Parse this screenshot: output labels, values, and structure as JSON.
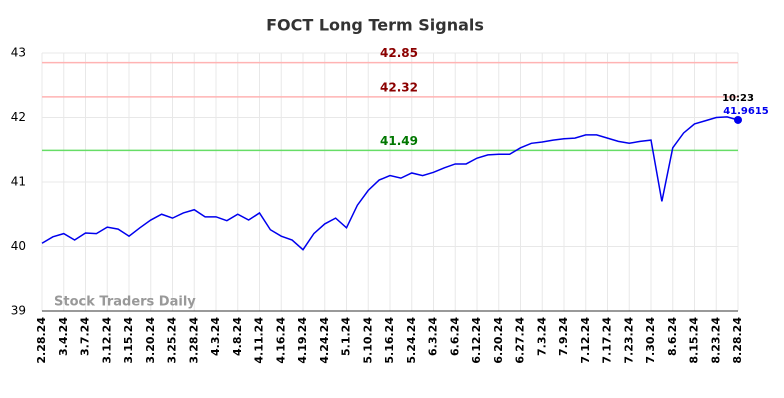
{
  "chart_data": {
    "type": "line",
    "title": "FOCT Long Term Signals",
    "categories": [
      "2.28.24",
      null,
      "3.4.24",
      null,
      "3.7.24",
      null,
      "3.12.24",
      null,
      "3.15.24",
      null,
      "3.20.24",
      null,
      "3.25.24",
      null,
      "3.28.24",
      null,
      "4.3.24",
      null,
      "4.8.24",
      null,
      "4.11.24",
      null,
      "4.16.24",
      null,
      "4.19.24",
      null,
      "4.24.24",
      null,
      "5.1.24",
      null,
      "5.10.24",
      null,
      "5.16.24",
      null,
      "5.24.24",
      null,
      "6.3.24",
      null,
      "6.6.24",
      null,
      "6.12.24",
      null,
      "6.20.24",
      null,
      "6.27.24",
      null,
      "7.3.24",
      null,
      "7.9.24",
      null,
      "7.12.24",
      null,
      "7.17.24",
      null,
      "7.23.24",
      null,
      "7.30.24",
      null,
      "8.6.24",
      null,
      "8.15.24",
      null,
      "8.23.24",
      null,
      "8.28.24"
    ],
    "series": [
      {
        "name": "FOCT",
        "color": "#0000ee",
        "values": [
          40.05,
          40.15,
          40.2,
          40.1,
          40.21,
          40.2,
          40.3,
          40.27,
          40.16,
          40.29,
          40.41,
          40.5,
          40.44,
          40.52,
          40.57,
          40.46,
          40.46,
          40.4,
          40.5,
          40.41,
          40.52,
          40.26,
          40.16,
          40.1,
          39.95,
          40.2,
          40.35,
          40.44,
          40.29,
          40.64,
          40.87,
          41.03,
          41.1,
          41.06,
          41.14,
          41.1,
          41.15,
          41.22,
          41.28,
          41.28,
          41.37,
          41.42,
          41.43,
          41.43,
          41.53,
          41.6,
          41.62,
          41.65,
          41.67,
          41.68,
          41.73,
          41.73,
          41.68,
          41.63,
          41.6,
          41.63,
          41.65,
          40.7,
          41.53,
          41.76,
          41.9,
          41.95,
          42.0,
          42.01,
          41.9615
        ]
      }
    ],
    "reference_lines": [
      {
        "value": 42.85,
        "color": "#ffb3b3",
        "label_color": "#8b0000"
      },
      {
        "value": 42.32,
        "color": "#ffb3b3",
        "label_color": "#8b0000"
      },
      {
        "value": 41.49,
        "color": "#66dd66",
        "label_color": "#007700"
      }
    ],
    "last_time": "10:23",
    "watermark": "Stock Traders Daily",
    "ylim": [
      39,
      43
    ],
    "yticks": [
      39,
      40,
      41,
      42,
      43
    ],
    "grid": true
  }
}
